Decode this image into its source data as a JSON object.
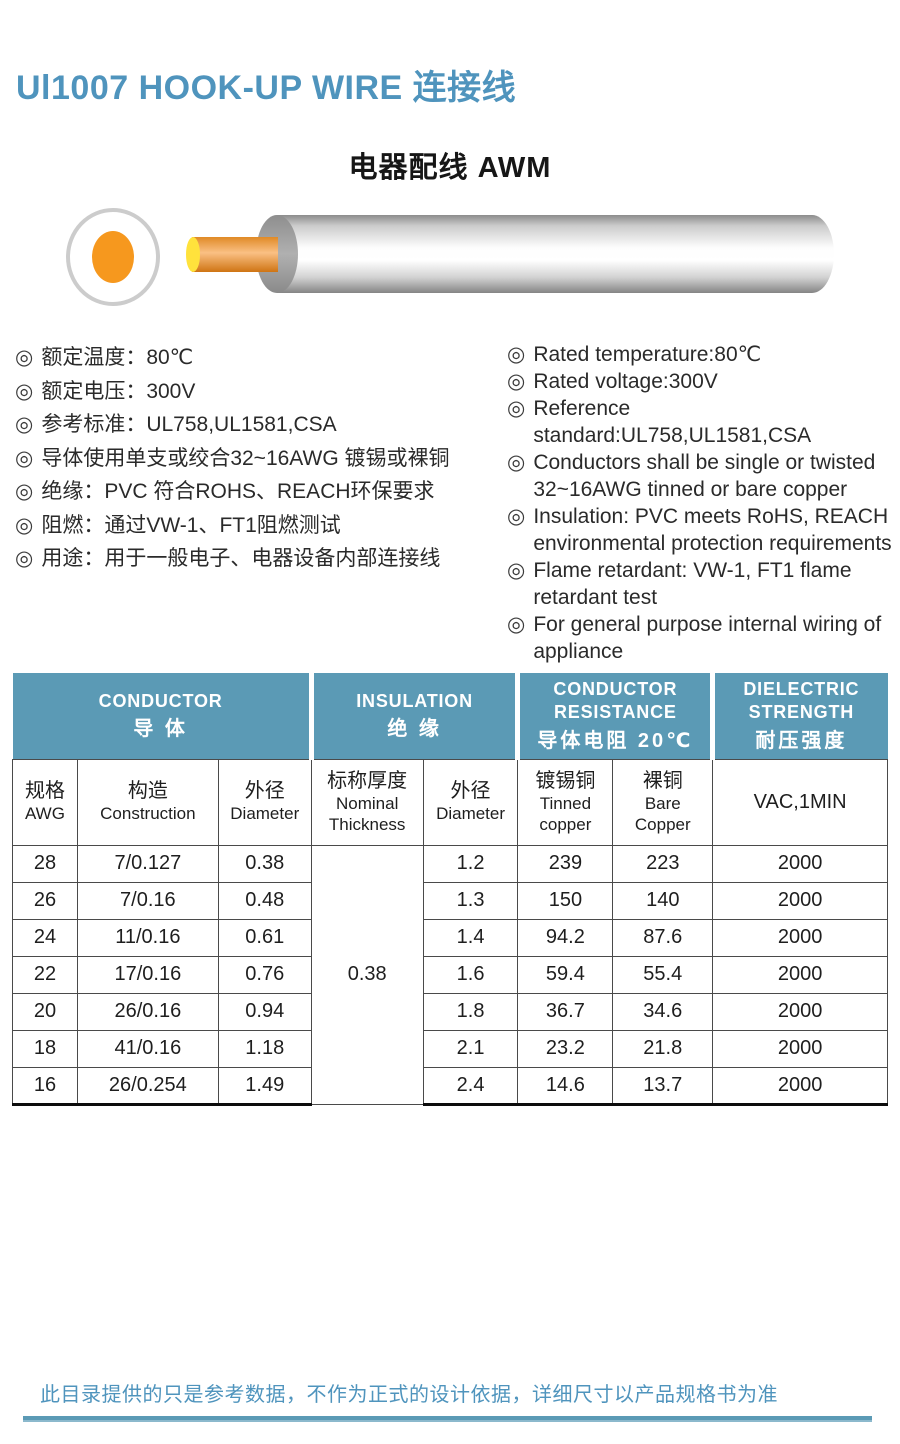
{
  "header": {
    "title": "Ul1007 HOOK-UP WIRE 连接线",
    "subtitle": "电器配线 AWM"
  },
  "bullet_glyph": "◎",
  "specs_cn": [
    "额定温度：80℃",
    "额定电压：300V",
    "参考标准：UL758,UL1581,CSA",
    "导体使用单支或绞合32~16AWG 镀锡或裸铜",
    "绝缘：PVC 符合ROHS、REACH环保要求",
    "阻燃：通过VW-1、FT1阻燃测试",
    "用途：用于一般电子、电器设备内部连接线"
  ],
  "specs_en": [
    [
      "Rated temperature:80℃"
    ],
    [
      "Rated voltage:300V"
    ],
    [
      "Reference standard:UL758,UL1581,CSA"
    ],
    [
      "Conductors shall be single or twisted",
      "32~16AWG tinned or bare copper"
    ],
    [
      "Insulation: PVC meets RoHS, REACH",
      "environmental protection requirements"
    ],
    [
      "Flame retardant: VW-1, FT1 flame",
      "retardant test"
    ],
    [
      "For general purpose internal wiring of",
      "appliance"
    ]
  ],
  "illustration": {
    "name": "wire-cross-section-and-cable",
    "conductor_color": "#f6981e",
    "tip_color": "#ffe23c"
  },
  "table": {
    "groups": [
      {
        "en_lines": [
          "CONDUCTOR"
        ],
        "cn": "导 体",
        "span": 3
      },
      {
        "en_lines": [
          "INSULATION"
        ],
        "cn": "绝 缘",
        "span": 2
      },
      {
        "en_lines": [
          "CONDUCTOR",
          "RESISTANCE"
        ],
        "cn": "导体电阻 20℃",
        "span": 2
      },
      {
        "en_lines": [
          "DIELECTRIC",
          "STRENGTH"
        ],
        "cn": "耐压强度",
        "span": 1
      }
    ],
    "columns": [
      {
        "cn": "规格",
        "en_lines": [
          "AWG"
        ]
      },
      {
        "cn": "构造",
        "en_lines": [
          "Construction"
        ]
      },
      {
        "cn": "外径",
        "en_lines": [
          "Diameter"
        ]
      },
      {
        "cn": "标称厚度",
        "en_lines": [
          "Nominal",
          "Thickness"
        ]
      },
      {
        "cn": "外径",
        "en_lines": [
          "Diameter"
        ]
      },
      {
        "cn": "镀锡铜",
        "en_lines": [
          "Tinned",
          "copper"
        ]
      },
      {
        "cn": "裸铜",
        "en_lines": [
          "Bare",
          "Copper"
        ]
      },
      {
        "cn": "",
        "en_lines": [
          "VAC,1MIN"
        ]
      }
    ],
    "nominal_thickness": "0.38",
    "rows": [
      [
        "28",
        "7/0.127",
        "0.38",
        "1.2",
        "239",
        "223",
        "2000"
      ],
      [
        "26",
        "7/0.16",
        "0.48",
        "1.3",
        "150",
        "140",
        "2000"
      ],
      [
        "24",
        "11/0.16",
        "0.61",
        "1.4",
        "94.2",
        "87.6",
        "2000"
      ],
      [
        "22",
        "17/0.16",
        "0.76",
        "1.6",
        "59.4",
        "55.4",
        "2000"
      ],
      [
        "20",
        "26/0.16",
        "0.94",
        "1.8",
        "36.7",
        "34.6",
        "2000"
      ],
      [
        "18",
        "41/0.16",
        "1.18",
        "2.1",
        "23.2",
        "21.8",
        "2000"
      ],
      [
        "16",
        "26/0.254",
        "1.49",
        "2.4",
        "14.6",
        "13.7",
        "2000"
      ]
    ]
  },
  "footer": {
    "note": "此目录提供的只是参考数据，不作为正式的设计依据，详细尺寸以产品规格书为准"
  },
  "colors": {
    "accent": "#4f94bd",
    "table_header_bg": "#5b9ab5",
    "table_header_text": "#ffffff"
  }
}
